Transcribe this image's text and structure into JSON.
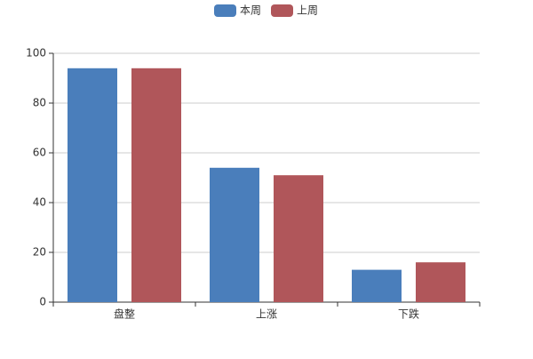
{
  "chart_data": {
    "type": "bar",
    "categories": [
      "盘整",
      "上涨",
      "下跌"
    ],
    "series": [
      {
        "name": "本周",
        "color": "#4a7ebb",
        "values": [
          94,
          54,
          13
        ]
      },
      {
        "name": "上周",
        "color": "#b0565a",
        "values": [
          94,
          51,
          16
        ]
      }
    ],
    "ylim": [
      0,
      100
    ],
    "yticks": [
      0,
      20,
      40,
      60,
      80,
      100
    ],
    "grid": true,
    "legend": "top"
  }
}
